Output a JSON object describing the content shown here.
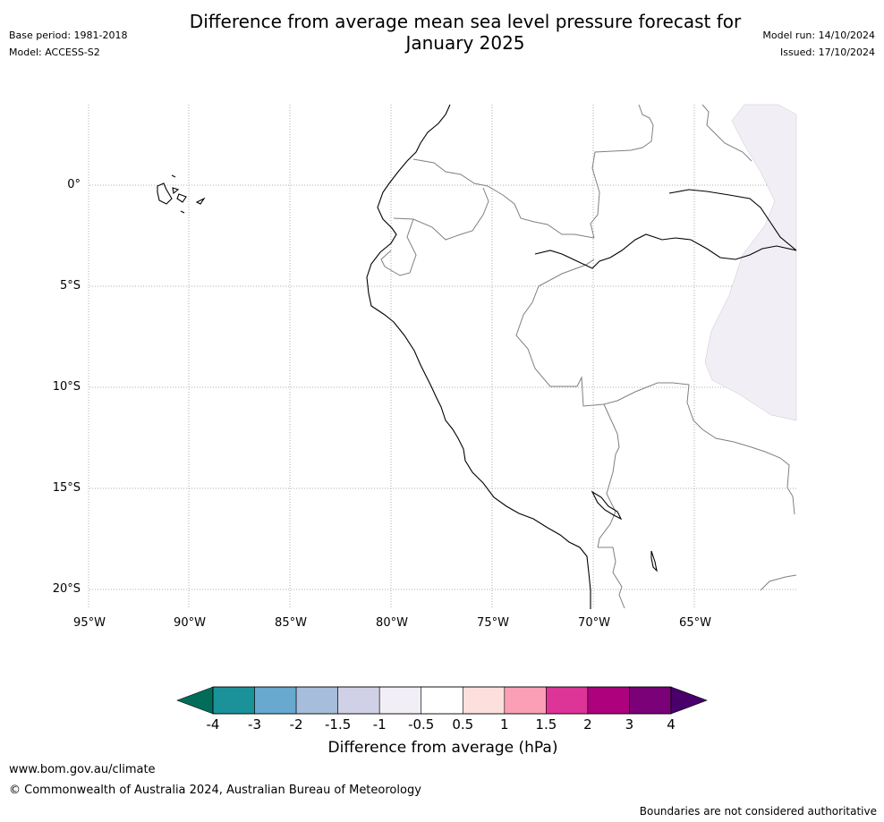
{
  "header": {
    "title_line1": "Difference from average mean sea level pressure forecast for",
    "title_line2": "January 2025",
    "base_period": "Base period: 1981-2018",
    "model": "Model: ACCESS-S2",
    "model_run": "Model run: 14/10/2024",
    "issued": "Issued: 17/10/2024"
  },
  "map": {
    "lat_labels": [
      "0°",
      "5°S",
      "10°S",
      "15°S",
      "20°S"
    ],
    "lon_labels": [
      "95°W",
      "90°W",
      "85°W",
      "80°W",
      "75°W",
      "70°W",
      "65°W"
    ],
    "anomaly_region_color": "#f2eef5",
    "coast_color": "#000000",
    "border_color": "#808080"
  },
  "legend": {
    "title": "Difference from average (hPa)",
    "tick_labels": [
      "-4",
      "-3",
      "-2",
      "-1.5",
      "-1",
      "-0.5",
      "0.5",
      "1",
      "1.5",
      "2",
      "3",
      "4"
    ],
    "colors": [
      "#016c59",
      "#1b9299",
      "#67a9cf",
      "#a6bddb",
      "#d0d1e6",
      "#f1eef6",
      "#ffffff",
      "#fde0dd",
      "#fa9fb5",
      "#dd3497",
      "#ae017e",
      "#7a0177",
      "#49006a"
    ]
  },
  "footer": {
    "site": "www.bom.gov.au/climate",
    "copyright": "© Commonwealth of Australia 2024, Australian Bureau of Meteorology",
    "disclaimer": "Boundaries are not considered authoritative"
  }
}
